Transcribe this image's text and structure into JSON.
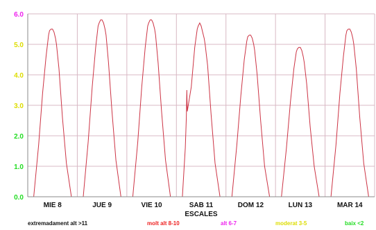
{
  "chart_data": {
    "type": "line",
    "title": "",
    "xlabel": "ESCALES",
    "ylabel": "",
    "ylim": [
      0,
      6
    ],
    "yticks": [
      {
        "value": 0,
        "label": "0.0",
        "color": "#22dd22"
      },
      {
        "value": 1,
        "label": "1.0",
        "color": "#22dd22"
      },
      {
        "value": 2,
        "label": "2.0",
        "color": "#22dd22"
      },
      {
        "value": 3,
        "label": "3.0",
        "color": "#dddd00"
      },
      {
        "value": 4,
        "label": "4.0",
        "color": "#dddd00"
      },
      {
        "value": 5,
        "label": "5.0",
        "color": "#dddd00"
      },
      {
        "value": 6,
        "label": "6.0",
        "color": "#ee22ee"
      }
    ],
    "grid": true,
    "line_color": "#cc3344",
    "days": [
      "MIE 8",
      "JUE 9",
      "VIE 10",
      "SAB 11",
      "DOM 12",
      "LUN 13",
      "MAR 14"
    ],
    "x_day_range": [
      0,
      7
    ],
    "series": [
      {
        "x": [
          0.12,
          0.22,
          0.3,
          0.37,
          0.42,
          0.44,
          0.47,
          0.5,
          0.53,
          0.56,
          0.58,
          0.63,
          0.7,
          0.78,
          0.88,
          1.12,
          1.22,
          1.3,
          1.37,
          1.42,
          1.44,
          1.47,
          1.5,
          1.53,
          1.56,
          1.58,
          1.63,
          1.7,
          1.78,
          1.88,
          2.12,
          2.22,
          2.3,
          2.37,
          2.42,
          2.44,
          2.47,
          2.5,
          2.53,
          2.56,
          2.58,
          2.63,
          2.7,
          2.78,
          2.88,
          3.12,
          3.18,
          3.2,
          3.21,
          3.22,
          3.25,
          3.3,
          3.37,
          3.42,
          3.44,
          3.47,
          3.5,
          3.53,
          3.56,
          3.58,
          3.63,
          3.7,
          3.78,
          3.88,
          4.12,
          4.22,
          4.3,
          4.37,
          4.42,
          4.44,
          4.47,
          4.5,
          4.53,
          4.56,
          4.58,
          4.63,
          4.7,
          4.78,
          4.88,
          5.12,
          5.22,
          5.3,
          5.37,
          5.42,
          5.44,
          5.47,
          5.5,
          5.53,
          5.56,
          5.58,
          5.63,
          5.7,
          5.78,
          5.88,
          6.12,
          6.22,
          6.3,
          6.37,
          6.42,
          6.44,
          6.47,
          6.5,
          6.53,
          6.56,
          6.58,
          6.63,
          6.7,
          6.78,
          6.88
        ],
        "y": [
          0,
          1.7,
          3.4,
          4.6,
          5.3,
          5.45,
          5.5,
          5.5,
          5.4,
          5.2,
          5.0,
          4.2,
          2.6,
          1.1,
          0,
          0,
          1.8,
          3.6,
          4.9,
          5.6,
          5.7,
          5.8,
          5.8,
          5.7,
          5.5,
          5.3,
          4.4,
          2.8,
          1.2,
          0,
          0,
          1.8,
          3.6,
          4.9,
          5.6,
          5.7,
          5.8,
          5.8,
          5.7,
          5.5,
          5.3,
          4.4,
          2.8,
          1.2,
          0,
          0,
          1.6,
          2.6,
          3.5,
          2.8,
          3.1,
          3.6,
          4.9,
          5.5,
          5.6,
          5.7,
          5.6,
          5.4,
          5.2,
          5.0,
          4.3,
          2.7,
          1.1,
          0,
          0,
          1.7,
          3.3,
          4.5,
          5.1,
          5.25,
          5.3,
          5.3,
          5.2,
          5.0,
          4.8,
          4.0,
          2.5,
          1.0,
          0,
          0,
          1.6,
          3.1,
          4.2,
          4.75,
          4.85,
          4.9,
          4.9,
          4.8,
          4.6,
          4.4,
          3.7,
          2.3,
          1.0,
          0,
          0,
          1.7,
          3.4,
          4.6,
          5.3,
          5.45,
          5.5,
          5.5,
          5.4,
          5.2,
          5.0,
          4.2,
          2.6,
          1.1,
          0
        ]
      }
    ],
    "legend": [
      {
        "label": "extremadament alt >11",
        "color": "#111111"
      },
      {
        "label": "molt alt 8-10",
        "color": "#ee2222"
      },
      {
        "label": "alt 6-7",
        "color": "#ee22ee"
      },
      {
        "label": "moderat 3-5",
        "color": "#dddd00"
      },
      {
        "label": "baix <2",
        "color": "#22dd22"
      }
    ]
  }
}
